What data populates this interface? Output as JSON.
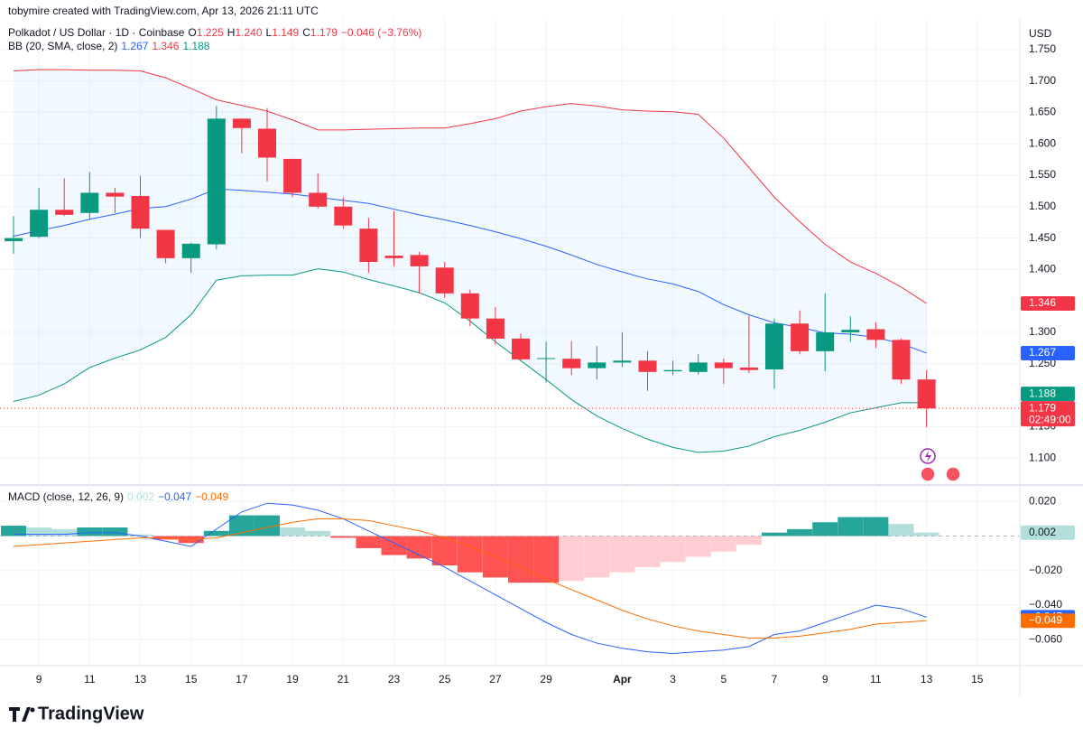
{
  "header": {
    "credit": "tobymire created with TradingView.com, Apr 13, 2026 21:11 UTC"
  },
  "chart_data": [
    {
      "type": "candlestick",
      "title": "Polkadot / US Dollar · 1D · Coinbase",
      "ohlc_legend": [
        {
          "key": "O",
          "label": "1.225"
        },
        {
          "key": "H",
          "label": "1.240"
        },
        {
          "key": "L",
          "label": "1.149"
        },
        {
          "key": "C",
          "label": "1.179"
        }
      ],
      "change": "−0.046 (−3.76%)",
      "categories": [
        null,
        "9",
        null,
        "11",
        null,
        "13",
        null,
        "15",
        null,
        "17",
        null,
        "19",
        null,
        "21",
        null,
        "23",
        null,
        "25",
        null,
        "27",
        null,
        "29",
        null,
        null,
        "Apr",
        null,
        "3",
        null,
        "5",
        null,
        "7",
        null,
        "9",
        null,
        "11",
        null,
        "13",
        null,
        "15"
      ],
      "open": [
        1.445,
        1.452,
        1.495,
        1.49,
        1.522,
        1.517,
        1.463,
        1.418,
        1.44,
        1.64,
        1.624,
        1.576,
        1.522,
        1.5,
        1.465,
        1.422,
        1.423,
        1.403,
        1.362,
        1.322,
        1.29,
        1.258,
        1.258,
        1.243,
        1.252,
        1.255,
        1.238,
        1.237,
        1.252,
        1.244,
        1.241,
        1.314,
        1.27,
        1.3,
        1.305,
        1.288,
        1.225,
        null,
        null
      ],
      "high": [
        1.485,
        1.53,
        1.545,
        1.555,
        1.53,
        1.549,
        1.463,
        1.443,
        1.66,
        1.64,
        1.657,
        1.576,
        1.553,
        1.515,
        1.482,
        1.493,
        1.428,
        1.412,
        1.368,
        1.34,
        1.298,
        1.285,
        1.286,
        1.278,
        1.3,
        1.27,
        1.255,
        1.265,
        1.258,
        1.327,
        1.322,
        1.335,
        1.362,
        1.325,
        1.316,
        1.29,
        1.24,
        null,
        null
      ],
      "low": [
        1.425,
        1.45,
        1.485,
        1.48,
        1.49,
        1.45,
        1.41,
        1.395,
        1.432,
        1.585,
        1.54,
        1.515,
        1.497,
        1.465,
        1.395,
        1.405,
        1.362,
        1.355,
        1.31,
        1.28,
        1.255,
        1.22,
        1.232,
        1.225,
        1.245,
        1.207,
        1.232,
        1.233,
        1.218,
        1.235,
        1.21,
        1.265,
        1.238,
        1.285,
        1.275,
        1.218,
        1.149,
        null,
        null
      ],
      "close": [
        1.45,
        1.495,
        1.487,
        1.522,
        1.516,
        1.465,
        1.418,
        1.441,
        1.64,
        1.625,
        1.578,
        1.522,
        1.5,
        1.47,
        1.412,
        1.418,
        1.405,
        1.362,
        1.322,
        1.29,
        1.257,
        1.259,
        1.243,
        1.252,
        1.255,
        1.237,
        1.24,
        1.252,
        1.243,
        1.24,
        1.314,
        1.27,
        1.3,
        1.304,
        1.288,
        1.225,
        1.179,
        null,
        null
      ],
      "up_color": "#089981",
      "down_color": "#f23645",
      "overlay": {
        "name": "BB (20, SMA, close, 2)",
        "fill": "#2196f3",
        "lines": [
          {
            "color": "#2962ff",
            "last_label": "1.267",
            "values": [
              1.453,
              1.462,
              1.47,
              1.48,
              1.488,
              1.497,
              1.5,
              1.512,
              1.528,
              1.526,
              1.523,
              1.52,
              1.515,
              1.51,
              1.505,
              1.496,
              1.487,
              1.479,
              1.47,
              1.46,
              1.449,
              1.437,
              1.423,
              1.408,
              1.396,
              1.385,
              1.377,
              1.365,
              1.344,
              1.328,
              1.315,
              1.308,
              1.299,
              1.297,
              1.292,
              1.282,
              1.267,
              null,
              null
            ]
          },
          {
            "color": "#f23645",
            "last_label": "1.346",
            "values": [
              1.716,
              1.718,
              1.718,
              1.717,
              1.717,
              1.716,
              1.705,
              1.688,
              1.67,
              1.661,
              1.652,
              1.638,
              1.622,
              1.622,
              1.623,
              1.624,
              1.625,
              1.625,
              1.632,
              1.64,
              1.652,
              1.659,
              1.664,
              1.66,
              1.654,
              1.652,
              1.651,
              1.647,
              1.609,
              1.562,
              1.515,
              1.476,
              1.44,
              1.412,
              1.394,
              1.372,
              1.346,
              null,
              null
            ]
          },
          {
            "color": "#089981",
            "last_label": "1.188",
            "values": [
              1.19,
              1.2,
              1.218,
              1.244,
              1.259,
              1.272,
              1.292,
              1.328,
              1.383,
              1.39,
              1.391,
              1.391,
              1.401,
              1.396,
              1.384,
              1.374,
              1.363,
              1.347,
              1.318,
              1.285,
              1.255,
              1.225,
              1.193,
              1.167,
              1.147,
              1.13,
              1.117,
              1.109,
              1.111,
              1.119,
              1.134,
              1.144,
              1.157,
              1.172,
              1.18,
              1.188,
              1.188,
              null,
              null
            ]
          }
        ]
      },
      "countdown": "02:49:00",
      "currency": "USD",
      "ylim": [
        1.06,
        1.8
      ],
      "yticks": [
        {
          "value": 1.1,
          "label": "1.100"
        },
        {
          "value": 1.15,
          "label": "1.150"
        },
        {
          "value": 1.25,
          "label": "1.250"
        },
        {
          "value": 1.3,
          "label": "1.300"
        },
        {
          "value": 1.4,
          "label": "1.400"
        },
        {
          "value": 1.45,
          "label": "1.450"
        },
        {
          "value": 1.5,
          "label": "1.500"
        },
        {
          "value": 1.55,
          "label": "1.550"
        },
        {
          "value": 1.6,
          "label": "1.600"
        },
        {
          "value": 1.65,
          "label": "1.650"
        },
        {
          "value": 1.7,
          "label": "1.700"
        },
        {
          "value": 1.75,
          "label": "1.750"
        }
      ],
      "grid": true
    },
    {
      "type": "macd",
      "title": "MACD (close, 12, 26, 9)",
      "histogram": {
        "last_label": "0.002",
        "colors": {
          "up_rising": "#26a69a",
          "up_falling": "#b2dfdb",
          "down_falling": "#ff5252",
          "down_rising": "#ffcdd2"
        },
        "values": [
          0.006,
          0.005,
          0.004,
          0.005,
          0.005,
          0.001,
          -0.002,
          -0.004,
          0.003,
          0.012,
          0.012,
          0.005,
          0.003,
          -0.001,
          -0.007,
          -0.011,
          -0.013,
          -0.017,
          -0.021,
          -0.024,
          -0.027,
          -0.027,
          -0.026,
          -0.024,
          -0.021,
          -0.018,
          -0.015,
          -0.012,
          -0.009,
          -0.005,
          0.002,
          0.004,
          0.008,
          0.011,
          0.011,
          0.007,
          0.002,
          null,
          null
        ]
      },
      "series": [
        {
          "color": "#2962ff",
          "last_label": "−0.047",
          "values": [
            0.001,
            0.001,
            0.001,
            0.002,
            0.002,
            0.0,
            -0.003,
            -0.006,
            0.004,
            0.014,
            0.019,
            0.018,
            0.015,
            0.01,
            0.003,
            -0.004,
            -0.011,
            -0.018,
            -0.026,
            -0.034,
            -0.042,
            -0.05,
            -0.057,
            -0.062,
            -0.065,
            -0.067,
            -0.068,
            -0.067,
            -0.066,
            -0.064,
            -0.057,
            -0.055,
            -0.05,
            -0.045,
            -0.04,
            -0.042,
            -0.047,
            null,
            null
          ]
        },
        {
          "color": "#ff6d00",
          "last_label": "−0.049",
          "values": [
            -0.006,
            -0.005,
            -0.004,
            -0.003,
            -0.002,
            -0.001,
            -0.001,
            -0.002,
            -0.001,
            0.002,
            0.005,
            0.008,
            0.01,
            0.01,
            0.009,
            0.006,
            0.003,
            -0.001,
            -0.006,
            -0.012,
            -0.018,
            -0.025,
            -0.031,
            -0.037,
            -0.043,
            -0.048,
            -0.052,
            -0.055,
            -0.057,
            -0.059,
            -0.059,
            -0.058,
            -0.056,
            -0.054,
            -0.051,
            -0.05,
            -0.049,
            null,
            null
          ]
        }
      ],
      "ylim": [
        -0.074,
        0.028
      ],
      "yticks": [
        {
          "value": 0.02,
          "label": "0.020"
        },
        {
          "value": -0.02,
          "label": "−0.020"
        },
        {
          "value": -0.04,
          "label": "−0.040"
        },
        {
          "value": -0.06,
          "label": "−0.060"
        }
      ],
      "grid": true
    }
  ],
  "footer": {
    "brand": "TradingView"
  }
}
